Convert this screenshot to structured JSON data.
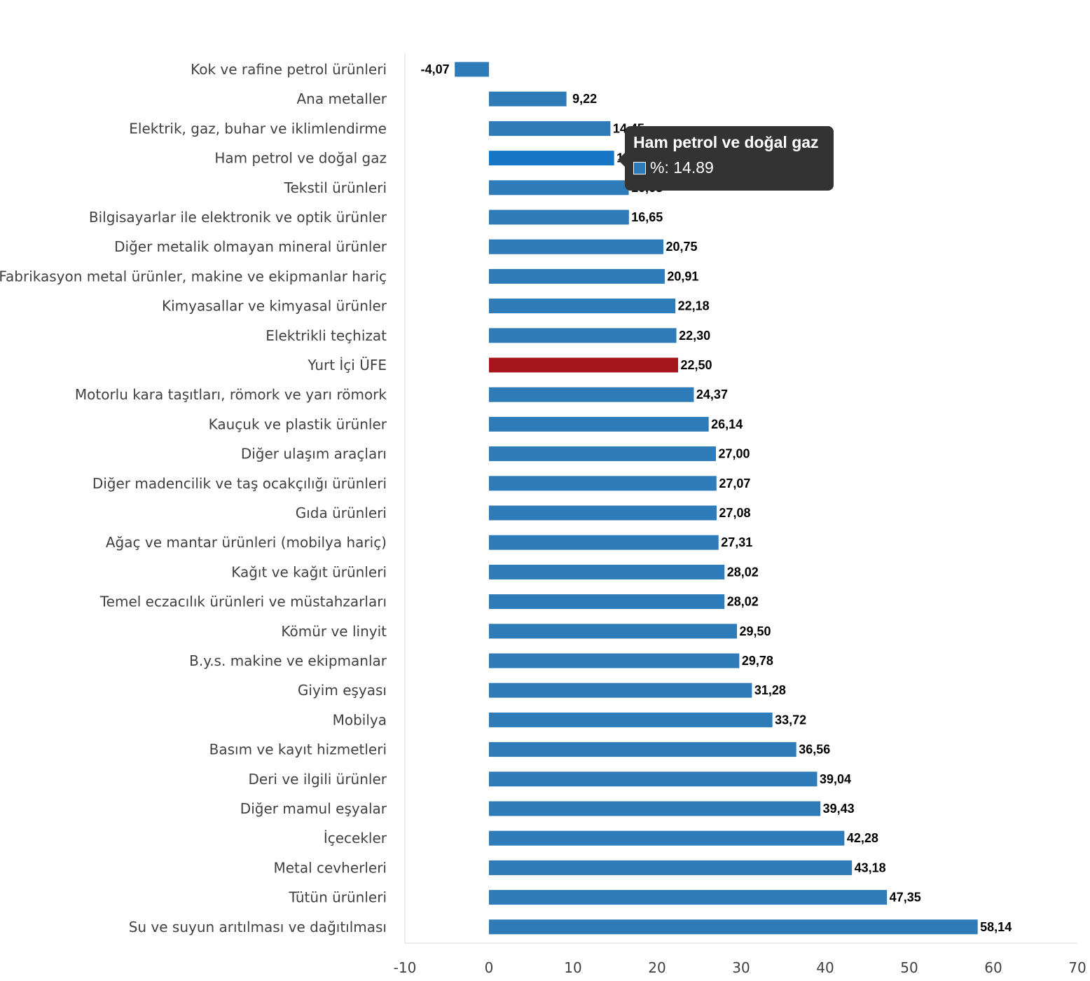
{
  "chart_data": {
    "type": "bar",
    "orientation": "horizontal",
    "categories": [
      "Kok ve rafine petrol ürünleri",
      "Ana metaller",
      "Elektrik, gaz, buhar ve iklimlendirme",
      "Ham petrol ve doğal gaz",
      "Tekstil ürünleri",
      "Bilgisayarlar ile elektronik ve optik ürünler",
      "Diğer metalik olmayan mineral ürünler",
      "Fabrikasyon metal ürünler, makine ve ekipmanlar hariç",
      "Kimyasallar ve kimyasal ürünler",
      "Elektrikli teçhizat",
      "Yurt İçi ÜFE",
      "Motorlu kara taşıtları, römork ve yarı römork",
      "Kauçuk ve plastik ürünler",
      "Diğer ulaşım araçları",
      "Diğer madencilik ve taş ocakçılığı ürünleri",
      "Gıda ürünleri",
      "Ağaç ve mantar ürünleri (mobilya hariç)",
      "Kağıt ve kağıt ürünleri",
      "Temel eczacılık ürünleri ve müstahzarları",
      "Kömür ve linyit",
      "B.y.s. makine ve ekipmanlar",
      "Giyim eşyası",
      "Mobilya",
      "Basım ve kayıt hizmetleri",
      "Deri ve ilgili ürünler",
      "Diğer mamul eşyalar",
      "İçecekler",
      "Metal cevherleri",
      "Tütün ürünleri",
      "Su ve suyun arıtılması ve dağıtılması"
    ],
    "values": [
      -4.07,
      9.22,
      14.45,
      14.89,
      16.63,
      16.65,
      20.75,
      20.91,
      22.18,
      22.3,
      22.5,
      24.37,
      26.14,
      27.0,
      27.07,
      27.08,
      27.31,
      28.02,
      28.02,
      29.5,
      29.78,
      31.28,
      33.72,
      36.56,
      39.04,
      39.43,
      42.28,
      43.18,
      47.35,
      58.14
    ],
    "value_labels": [
      "-4,07",
      "9,22",
      "14,45",
      "14,89",
      "16,63",
      "16,65",
      "20,75",
      "20,91",
      "22,18",
      "22,30",
      "22,50",
      "24,37",
      "26,14",
      "27,00",
      "27,07",
      "27,08",
      "27,31",
      "28,02",
      "28,02",
      "29,50",
      "29,78",
      "31,28",
      "33,72",
      "36,56",
      "39,04",
      "39,43",
      "42,28",
      "43,18",
      "47,35",
      "58,14"
    ],
    "xlim": [
      -10,
      70
    ],
    "xticks": [
      -10,
      0,
      10,
      20,
      30,
      40,
      50,
      60,
      70
    ],
    "grid": false,
    "legend": "none",
    "colors": {
      "bar": "#2e7bba",
      "highlight": "#a5151b",
      "hover": "#1577c6",
      "highlight_index": 10,
      "hover_index": 3
    }
  },
  "tooltip": {
    "title": "Ham petrol ve doğal gaz",
    "value_text": "%: 14.89",
    "swatch_color": "#2e7bba"
  }
}
